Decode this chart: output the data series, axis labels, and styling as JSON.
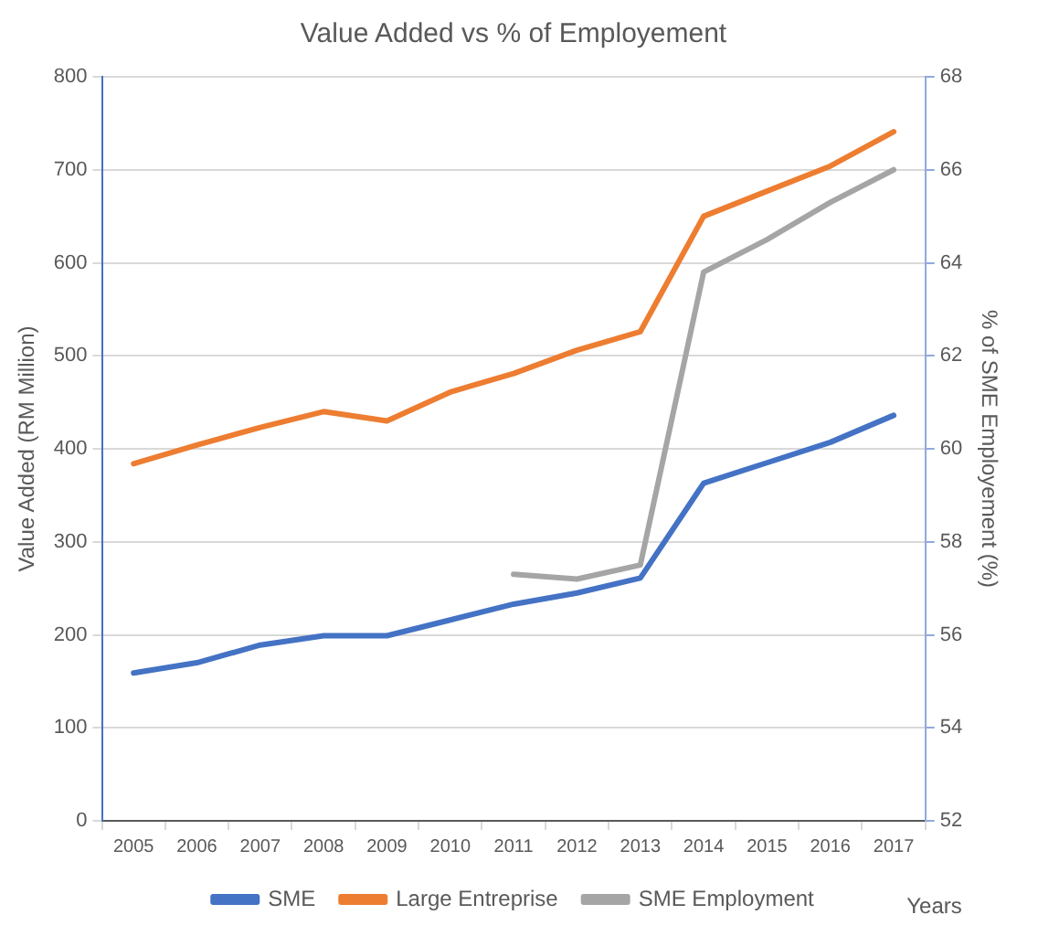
{
  "chart_data": {
    "type": "line",
    "title": "Value Added vs % of Employement",
    "xlabel": "Years",
    "ylabel": "Value Added (RM Million)",
    "y2label": "% of SME Employement (%)",
    "categories": [
      "2005",
      "2006",
      "2007",
      "2008",
      "2009",
      "2010",
      "2011",
      "2012",
      "2013",
      "2014",
      "2015",
      "2016",
      "2017"
    ],
    "series": [
      {
        "name": "SME",
        "color": "#4472c4",
        "values": [
          159,
          170,
          189,
          199,
          199,
          216,
          233,
          245,
          261,
          363,
          385,
          407,
          436
        ]
      },
      {
        "name": "Large Entreprise",
        "color": "#ed7d31",
        "values": [
          384,
          404,
          423,
          440,
          430,
          461,
          481,
          506,
          526,
          650,
          677,
          704,
          741
        ]
      },
      {
        "name": "SME Employment",
        "color": "#a5a5a5",
        "axis": "y2",
        "values": [
          null,
          null,
          null,
          null,
          null,
          null,
          57.3,
          57.2,
          57.5,
          63.8,
          64.5,
          65.3,
          66.0
        ]
      }
    ],
    "ylim": [
      0,
      800
    ],
    "yticks": [
      0,
      100,
      200,
      300,
      400,
      500,
      600,
      700,
      800
    ],
    "y2lim": [
      52,
      68
    ],
    "y2ticks": [
      52,
      54,
      56,
      58,
      60,
      62,
      64,
      66,
      68
    ],
    "grid": "y",
    "legend": "bottom",
    "marker": "none",
    "line_style": "solid"
  }
}
